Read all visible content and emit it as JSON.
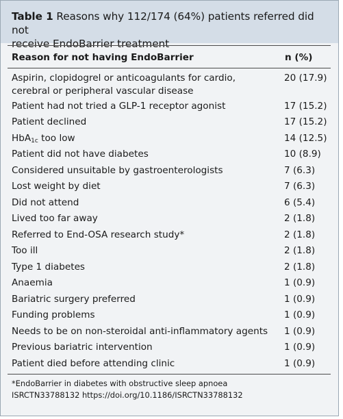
{
  "table": {
    "label": "Table 1",
    "caption_line1": "Reasons why 112/174 (64%) patients referred did not",
    "caption_line2": "receive EndoBarrier treatment",
    "header_reason": "Reason for not having EndoBarrier",
    "header_n": "n (%)",
    "rows": [
      {
        "reason_line1": "Aspirin, clopidogrel or anticoagulants for cardio,",
        "reason_line2": "cerebral or peripheral vascular disease",
        "n": "20 (17.9)"
      },
      {
        "reason": "Patient had not tried a GLP-1 receptor agonist",
        "n": "17 (15.2)"
      },
      {
        "reason": "Patient declined",
        "n": "17 (15.2)"
      },
      {
        "reason_prefix": "HbA",
        "reason_sub": "1c",
        "reason_suffix": " too low",
        "n": "14 (12.5)"
      },
      {
        "reason": "Patient did not have diabetes",
        "n": "10 (8.9)"
      },
      {
        "reason": "Considered unsuitable by gastroenterologists",
        "n": "7 (6.3)"
      },
      {
        "reason": "Lost weight by diet",
        "n": "7 (6.3)"
      },
      {
        "reason": "Did not attend",
        "n": "6 (5.4)"
      },
      {
        "reason": "Lived too far away",
        "n": "2 (1.8)"
      },
      {
        "reason": "Referred to End-OSA research study*",
        "n": "2 (1.8)"
      },
      {
        "reason": "Too ill",
        "n": "2 (1.8)"
      },
      {
        "reason": "Type 1 diabetes",
        "n": "2 (1.8)"
      },
      {
        "reason": "Anaemia",
        "n": "1 (0.9)"
      },
      {
        "reason": "Bariatric surgery preferred",
        "n": "1 (0.9)"
      },
      {
        "reason": "Funding problems",
        "n": "1 (0.9)"
      },
      {
        "reason": "Needs to be on non-steroidal anti-inflammatory agents",
        "n": "1 (0.9)"
      },
      {
        "reason": "Previous bariatric intervention",
        "n": "1 (0.9)"
      },
      {
        "reason": "Patient died before attending clinic",
        "n": "1 (0.9)"
      }
    ],
    "footnote_line1": "*EndoBarrier in diabetes with obstructive sleep apnoea",
    "footnote_line2": "ISRCTN33788132 https://doi.org/10.1186/ISRCTN33788132"
  }
}
